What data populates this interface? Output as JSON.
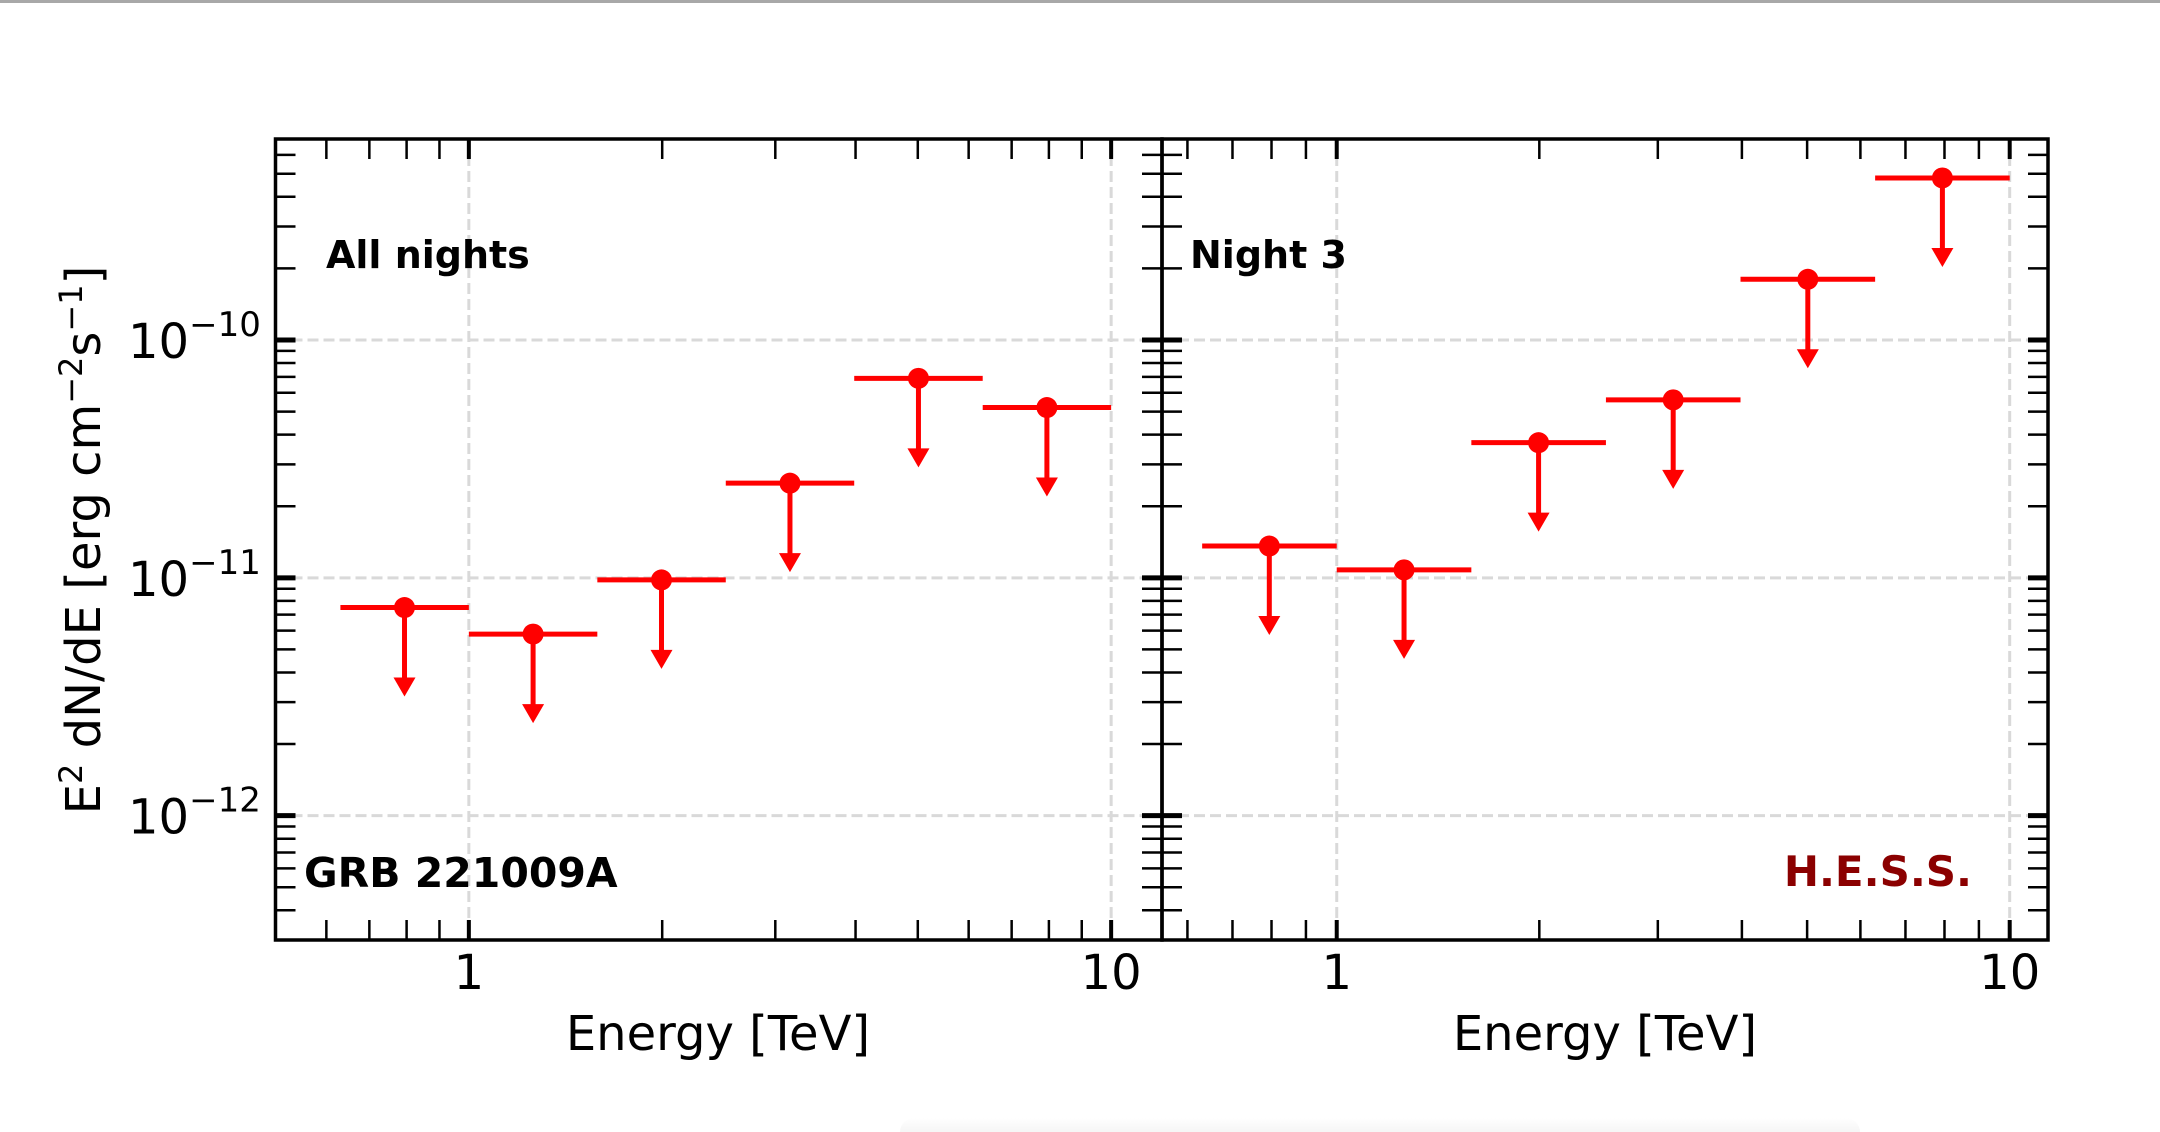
{
  "chart_data": [
    {
      "type": "scatter",
      "subtype": "upper-limits",
      "panel": "left",
      "annotation": "All nights",
      "source_label": "GRB 221009A",
      "xlabel": "Energy [TeV]",
      "ylabel": "E² dN/dE [erg cm⁻² s⁻¹]",
      "xscale": "log",
      "yscale": "log",
      "xlim": [
        0.5,
        12.0
      ],
      "ylim": [
        3e-13,
        7e-10
      ],
      "grid": true,
      "xticks": [
        {
          "value": 1,
          "label": "1"
        },
        {
          "value": 10,
          "label": "10"
        }
      ],
      "yticks": [
        {
          "value": 1e-10,
          "base": "10",
          "exp": "−10"
        },
        {
          "value": 1e-11,
          "base": "10",
          "exp": "−11"
        },
        {
          "value": 1e-12,
          "base": "10",
          "exp": "−12"
        }
      ],
      "series": [
        {
          "name": "upper limits",
          "color": "#ff0000",
          "points": [
            {
              "x": 0.794,
              "x_low": 0.631,
              "x_high": 1.0,
              "y_ul": 7.5e-12
            },
            {
              "x": 1.259,
              "x_low": 1.0,
              "x_high": 1.585,
              "y_ul": 5.8e-12
            },
            {
              "x": 1.995,
              "x_low": 1.585,
              "x_high": 2.512,
              "y_ul": 9.8e-12
            },
            {
              "x": 3.162,
              "x_low": 2.512,
              "x_high": 3.981,
              "y_ul": 2.5e-11
            },
            {
              "x": 5.012,
              "x_low": 3.981,
              "x_high": 6.31,
              "y_ul": 6.9e-11
            },
            {
              "x": 7.943,
              "x_low": 6.31,
              "x_high": 10.0,
              "y_ul": 5.2e-11
            }
          ]
        }
      ]
    },
    {
      "type": "scatter",
      "subtype": "upper-limits",
      "panel": "right",
      "annotation": "Night 3",
      "source_label": "H.E.S.S.",
      "source_label_color": "#8b0000",
      "xlabel": "Energy [TeV]",
      "xscale": "log",
      "yscale": "log",
      "xlim": [
        0.55,
        11.4
      ],
      "ylim": [
        3e-13,
        7e-10
      ],
      "grid": true,
      "xticks": [
        {
          "value": 1,
          "label": "1"
        },
        {
          "value": 10,
          "label": "10"
        }
      ],
      "series": [
        {
          "name": "upper limits",
          "color": "#ff0000",
          "points": [
            {
              "x": 0.794,
              "x_low": 0.631,
              "x_high": 1.0,
              "y_ul": 1.36e-11
            },
            {
              "x": 1.259,
              "x_low": 1.0,
              "x_high": 1.585,
              "y_ul": 1.08e-11
            },
            {
              "x": 1.995,
              "x_low": 1.585,
              "x_high": 2.512,
              "y_ul": 3.7e-11
            },
            {
              "x": 3.162,
              "x_low": 2.512,
              "x_high": 3.981,
              "y_ul": 5.6e-11
            },
            {
              "x": 5.012,
              "x_low": 3.981,
              "x_high": 6.31,
              "y_ul": 1.8e-10
            },
            {
              "x": 7.943,
              "x_low": 6.31,
              "x_high": 10.0,
              "y_ul": 4.8e-10
            }
          ]
        }
      ]
    }
  ],
  "labels": {
    "ylabel_base": "E",
    "ylabel_e_exp": "2",
    "ylabel_mid": " dN/dE [erg cm",
    "ylabel_cm_exp": "−2",
    "ylabel_s": "s",
    "ylabel_s_exp": "−1",
    "ylabel_end": "]",
    "left_annotation": "All nights",
    "left_source": "GRB 221009A",
    "right_annotation": "Night 3",
    "right_source": "H.E.S.S.",
    "xlabel_left": "Energy [TeV]",
    "xlabel_right": "Energy [TeV]"
  },
  "colors": {
    "data": "#ff0000",
    "hess": "#8b0000",
    "grid": "#d9d9d9",
    "axis": "#000000"
  }
}
